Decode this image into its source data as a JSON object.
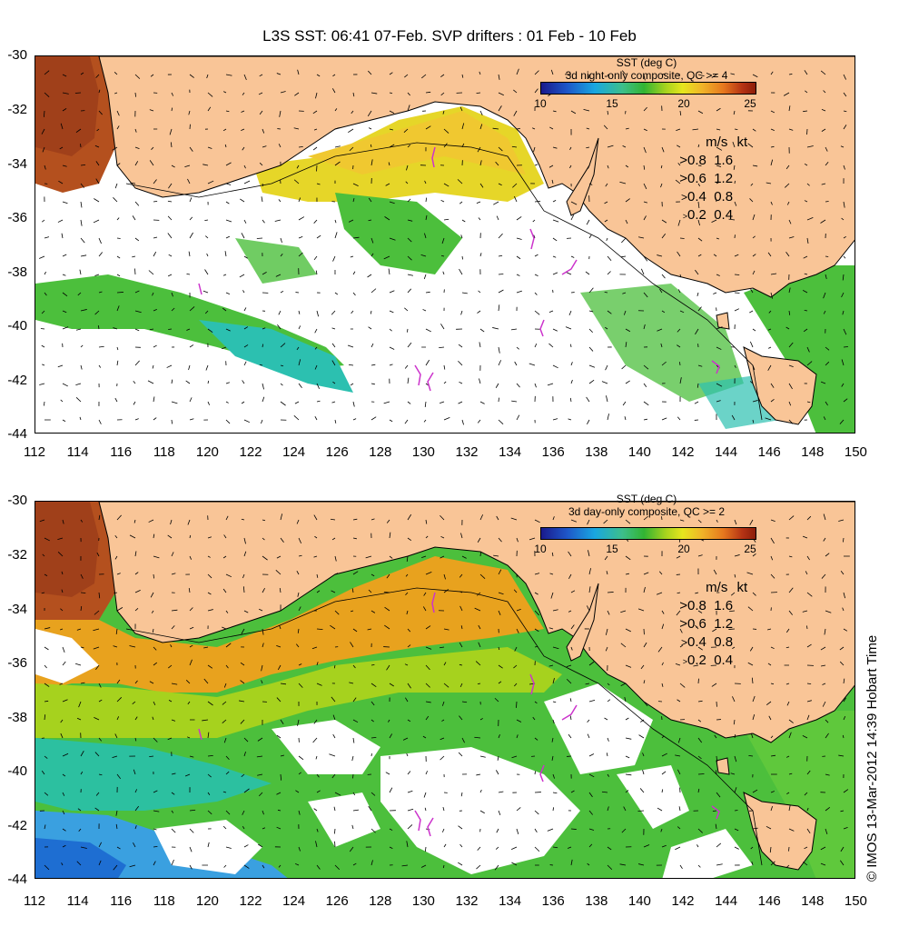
{
  "title": "L3S SST: 06:41 07-Feb. SVP drifters : 01 Feb - 10 Feb",
  "panels": [
    {
      "legend_title": "SST (deg C)",
      "legend_subtitle": "3d night-only composite, QC >= 4",
      "colorbar_ticks": [
        "10",
        "15",
        "20",
        "25"
      ]
    },
    {
      "legend_title": "SST (deg C)",
      "legend_subtitle": "3d day-only composite, QC >= 2",
      "colorbar_ticks": [
        "10",
        "15",
        "20",
        "25"
      ]
    }
  ],
  "speed_legend": {
    "header_ms": "m/s",
    "header_kt": "kt",
    "rows": [
      {
        "ms": "0.8",
        "kt": "1.6"
      },
      {
        "ms": "0.6",
        "kt": "1.2"
      },
      {
        "ms": "0.4",
        "kt": "0.8"
      },
      {
        "ms": "0.2",
        "kt": "0.4"
      }
    ]
  },
  "lat_labels": [
    "-30",
    "-32",
    "-34",
    "-36",
    "-38",
    "-40",
    "-42",
    "-44"
  ],
  "lon_labels": [
    "112",
    "114",
    "116",
    "118",
    "120",
    "122",
    "124",
    "126",
    "128",
    "130",
    "132",
    "134",
    "136",
    "138",
    "140",
    "142",
    "144",
    "146",
    "148",
    "150"
  ],
  "credit": "© IMOS 13-Mar-2012 14:39 Hobart Time",
  "colors": {
    "land": "#f9c597",
    "warm": "#e8961e",
    "hot": "#b4501e",
    "yellow": "#e6e628",
    "green": "#4cbf3c",
    "cyan": "#2cc0b0",
    "blue": "#3aa0e0",
    "drifter": "#cc33cc"
  }
}
